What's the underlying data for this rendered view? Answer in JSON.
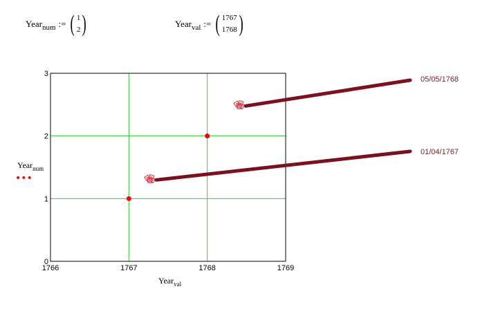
{
  "definitions": [
    {
      "name": "Year",
      "subscript": "num",
      "assign": ":=",
      "values": [
        "1",
        "2"
      ]
    },
    {
      "name": "Year",
      "subscript": "val",
      "assign": ":=",
      "values": [
        "1767",
        "1768"
      ]
    }
  ],
  "colors": {
    "grid": "#33cc33",
    "points": "#ff0000",
    "callout_line": "#7a1020",
    "callout_text": "#7a1e1e",
    "trace_markers": "#e03040"
  },
  "chart_data": {
    "type": "scatter",
    "x_axis": {
      "title": "Year",
      "title_sub": "val",
      "range": [
        1766,
        1769
      ],
      "ticks": [
        "1766",
        "1767",
        "1768",
        "1769"
      ]
    },
    "y_axis": {
      "title": "Year",
      "title_sub": "num",
      "range": [
        0,
        3
      ],
      "ticks": [
        "0",
        "1",
        "2",
        "3"
      ]
    },
    "grid": true,
    "series": [
      {
        "x": [
          1767,
          1768
        ],
        "y": [
          1,
          2
        ],
        "marker": "filled-circle"
      }
    ],
    "legend_marker": "•••",
    "trace_callouts": [
      {
        "label": "01/04/1767",
        "x": 1767.27,
        "y": 1.32
      },
      {
        "label": "05/05/1768",
        "x": 1768.41,
        "y": 2.5
      }
    ]
  }
}
